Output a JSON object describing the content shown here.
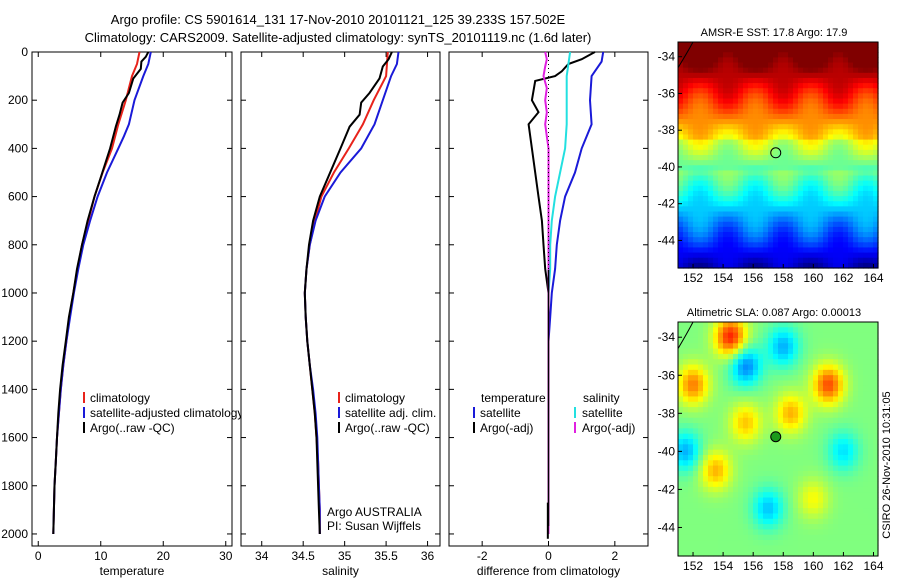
{
  "header": {
    "line1": "Argo profile: CS 5901614_131 17-Nov-2010 20101121_125 39.233S 157.502E",
    "line2": "Climatology: CARS2009. Satellite-adjusted climatology: synTS_20101119.nc (1.6d later)"
  },
  "colors": {
    "climatology": "#e8231b",
    "satellite": "#1a1ad8",
    "argo": "#000000",
    "sat_salinity": "#22e0e0",
    "argo_salinity_adj": "#e020e0"
  },
  "y_axis": {
    "ticks": [
      0,
      200,
      400,
      600,
      800,
      1000,
      1200,
      1400,
      1600,
      1800,
      2000
    ],
    "range": [
      0,
      2050
    ]
  },
  "chart_data": [
    {
      "type": "line",
      "id": "temperature",
      "xlabel": "temperature",
      "xlim": [
        -1,
        31
      ],
      "xticks": [
        0,
        10,
        20,
        30
      ],
      "ylim": [
        2050,
        0
      ],
      "legend": [
        "climatology",
        "satellite-adjusted climatology",
        "Argo(..raw -QC)"
      ],
      "series": [
        {
          "name": "climatology",
          "color_key": "climatology",
          "points": [
            [
              16.2,
              0
            ],
            [
              15.8,
              50
            ],
            [
              15.0,
              100
            ],
            [
              14.0,
              200
            ],
            [
              12.8,
              300
            ],
            [
              11.8,
              400
            ],
            [
              10.3,
              500
            ],
            [
              9.0,
              600
            ],
            [
              8.0,
              700
            ],
            [
              7.0,
              800
            ],
            [
              6.3,
              900
            ],
            [
              5.6,
              1000
            ],
            [
              5.0,
              1100
            ],
            [
              4.5,
              1200
            ],
            [
              4.0,
              1300
            ],
            [
              3.6,
              1400
            ],
            [
              3.3,
              1500
            ],
            [
              3.0,
              1600
            ],
            [
              2.8,
              1700
            ],
            [
              2.6,
              1800
            ],
            [
              2.5,
              1900
            ],
            [
              2.4,
              2000
            ]
          ]
        },
        {
          "name": "satellite-adjusted climatology",
          "color_key": "satellite",
          "points": [
            [
              18.0,
              0
            ],
            [
              17.6,
              50
            ],
            [
              16.8,
              100
            ],
            [
              15.4,
              200
            ],
            [
              14.5,
              300
            ],
            [
              13.7,
              350
            ],
            [
              12.8,
              400
            ],
            [
              11.0,
              500
            ],
            [
              9.5,
              600
            ],
            [
              8.3,
              700
            ],
            [
              7.2,
              800
            ],
            [
              6.4,
              900
            ],
            [
              5.7,
              1000
            ],
            [
              5.1,
              1100
            ],
            [
              4.5,
              1200
            ],
            [
              4.0,
              1300
            ],
            [
              3.6,
              1400
            ],
            [
              3.3,
              1500
            ],
            [
              3.0,
              1600
            ],
            [
              2.8,
              1700
            ],
            [
              2.6,
              1800
            ],
            [
              2.5,
              1900
            ],
            [
              2.4,
              2000
            ]
          ]
        },
        {
          "name": "Argo(..raw -QC)",
          "color_key": "argo",
          "points": [
            [
              17.6,
              0
            ],
            [
              17.2,
              20
            ],
            [
              16.5,
              40
            ],
            [
              16.4,
              70
            ],
            [
              15.2,
              110
            ],
            [
              14.5,
              170
            ],
            [
              13.5,
              210
            ],
            [
              13.0,
              260
            ],
            [
              12.4,
              310
            ],
            [
              11.5,
              400
            ],
            [
              10.0,
              520
            ],
            [
              9.0,
              600
            ],
            [
              7.9,
              700
            ],
            [
              7.0,
              800
            ],
            [
              6.2,
              900
            ],
            [
              5.6,
              1000
            ],
            [
              4.9,
              1100
            ],
            [
              4.4,
              1200
            ],
            [
              3.9,
              1300
            ],
            [
              3.5,
              1400
            ],
            [
              3.2,
              1500
            ],
            [
              3.0,
              1600
            ],
            [
              2.8,
              1700
            ],
            [
              2.6,
              1800
            ],
            [
              2.5,
              1900
            ],
            [
              2.4,
              2000
            ]
          ]
        }
      ]
    },
    {
      "type": "line",
      "id": "salinity",
      "xlabel": "salinity",
      "xlim": [
        33.75,
        36.15
      ],
      "xticks": [
        34,
        34.5,
        35,
        35.5,
        36
      ],
      "ylim": [
        2050,
        0
      ],
      "legend": [
        "climatology",
        "satellite adj. clim.",
        "Argo(..raw -QC)"
      ],
      "series": [
        {
          "name": "climatology",
          "color_key": "climatology",
          "points": [
            [
              35.52,
              0
            ],
            [
              35.5,
              100
            ],
            [
              35.35,
              200
            ],
            [
              35.22,
              300
            ],
            [
              35.05,
              400
            ],
            [
              34.87,
              500
            ],
            [
              34.72,
              600
            ],
            [
              34.64,
              700
            ],
            [
              34.58,
              800
            ],
            [
              34.54,
              900
            ],
            [
              34.52,
              1000
            ],
            [
              34.53,
              1100
            ],
            [
              34.55,
              1200
            ],
            [
              34.58,
              1300
            ],
            [
              34.61,
              1400
            ],
            [
              34.64,
              1500
            ],
            [
              34.66,
              1600
            ],
            [
              34.68,
              1700
            ],
            [
              34.69,
              1800
            ],
            [
              34.7,
              1900
            ],
            [
              34.7,
              2000
            ]
          ]
        },
        {
          "name": "satellite adj. clim.",
          "color_key": "satellite",
          "points": [
            [
              35.65,
              0
            ],
            [
              35.63,
              50
            ],
            [
              35.56,
              100
            ],
            [
              35.46,
              200
            ],
            [
              35.36,
              300
            ],
            [
              35.2,
              400
            ],
            [
              34.95,
              500
            ],
            [
              34.76,
              600
            ],
            [
              34.65,
              700
            ],
            [
              34.58,
              800
            ],
            [
              34.54,
              900
            ],
            [
              34.52,
              1000
            ],
            [
              34.53,
              1100
            ],
            [
              34.55,
              1200
            ],
            [
              34.58,
              1300
            ],
            [
              34.62,
              1400
            ],
            [
              34.65,
              1500
            ],
            [
              34.67,
              1600
            ],
            [
              34.68,
              1700
            ],
            [
              34.69,
              1800
            ],
            [
              34.7,
              1900
            ],
            [
              34.7,
              2000
            ]
          ]
        },
        {
          "name": "Argo(..raw -QC)",
          "color_key": "argo",
          "points": [
            [
              35.57,
              0
            ],
            [
              35.53,
              30
            ],
            [
              35.46,
              60
            ],
            [
              35.42,
              110
            ],
            [
              35.3,
              170
            ],
            [
              35.2,
              210
            ],
            [
              35.18,
              260
            ],
            [
              35.06,
              310
            ],
            [
              34.95,
              400
            ],
            [
              34.8,
              520
            ],
            [
              34.7,
              600
            ],
            [
              34.62,
              700
            ],
            [
              34.57,
              800
            ],
            [
              34.54,
              900
            ],
            [
              34.52,
              1000
            ],
            [
              34.53,
              1100
            ],
            [
              34.55,
              1200
            ],
            [
              34.58,
              1300
            ],
            [
              34.61,
              1400
            ],
            [
              34.64,
              1500
            ],
            [
              34.66,
              1600
            ],
            [
              34.67,
              1700
            ],
            [
              34.68,
              1800
            ],
            [
              34.69,
              1900
            ],
            [
              34.7,
              2000
            ]
          ]
        }
      ],
      "annotation": [
        "Argo AUSTRALIA",
        "PI: Susan Wijffels"
      ]
    },
    {
      "type": "line",
      "id": "difference",
      "xlabel": "difference from climatology",
      "xlim": [
        -3,
        3
      ],
      "xticks": [
        -2,
        0,
        2
      ],
      "ylim": [
        2050,
        0
      ],
      "legend_left": [
        "temperature",
        "satellite",
        "Argo(-adj)"
      ],
      "legend_right": [
        "salinity",
        "satellite",
        "Argo(-adj)"
      ],
      "series": [
        {
          "name": "temperature satellite",
          "color_key": "satellite",
          "points": [
            [
              1.65,
              0
            ],
            [
              1.6,
              40
            ],
            [
              1.3,
              100
            ],
            [
              1.25,
              200
            ],
            [
              1.3,
              300
            ],
            [
              1.0,
              400
            ],
            [
              0.8,
              500
            ],
            [
              0.5,
              600
            ],
            [
              0.35,
              700
            ],
            [
              0.25,
              800
            ],
            [
              0.2,
              900
            ],
            [
              0.1,
              1000
            ],
            [
              0.05,
              1100
            ],
            [
              0.0,
              1200
            ],
            [
              0.0,
              2000
            ]
          ]
        },
        {
          "name": "temperature Argo(-adj)",
          "color_key": "argo",
          "points": [
            [
              1.4,
              0
            ],
            [
              1.0,
              30
            ],
            [
              0.6,
              50
            ],
            [
              0.4,
              80
            ],
            [
              0.2,
              100
            ],
            [
              -0.4,
              120
            ],
            [
              -0.5,
              200
            ],
            [
              -0.3,
              250
            ],
            [
              -0.6,
              300
            ],
            [
              -0.5,
              400
            ],
            [
              -0.3,
              600
            ],
            [
              -0.2,
              700
            ],
            [
              -0.15,
              800
            ],
            [
              -0.1,
              900
            ],
            [
              0.0,
              1000
            ],
            [
              0.0,
              2000
            ]
          ]
        },
        {
          "name": "salinity satellite",
          "color_key": "sat_salinity",
          "points": [
            [
              0.65,
              0
            ],
            [
              0.6,
              50
            ],
            [
              0.55,
              100
            ],
            [
              0.55,
              200
            ],
            [
              0.55,
              300
            ],
            [
              0.5,
              400
            ],
            [
              0.35,
              500
            ],
            [
              0.2,
              600
            ],
            [
              0.1,
              700
            ],
            [
              0.05,
              800
            ],
            [
              0.05,
              900
            ],
            [
              0.0,
              1000
            ],
            [
              0.0,
              2000
            ]
          ]
        },
        {
          "name": "salinity Argo(-adj)",
          "color_key": "argo_salinity_adj",
          "points": [
            [
              -0.1,
              0
            ],
            [
              -0.05,
              30
            ],
            [
              -0.1,
              60
            ],
            [
              -0.15,
              100
            ],
            [
              -0.05,
              150
            ],
            [
              -0.1,
              200
            ],
            [
              -0.05,
              250
            ],
            [
              -0.1,
              300
            ],
            [
              -0.05,
              350
            ],
            [
              0.0,
              400
            ],
            [
              0.0,
              2000
            ]
          ]
        }
      ]
    },
    {
      "type": "heatmap",
      "id": "sst_map",
      "title": "AMSR-E SST: 17.8 Argo: 17.9",
      "xlim": [
        151,
        164.3
      ],
      "ylim": [
        -45.5,
        -33.2
      ],
      "xticks": [
        152,
        154,
        156,
        158,
        160,
        162,
        164
      ],
      "yticks": [
        -34,
        -36,
        -38,
        -40,
        -42,
        -44
      ],
      "marker": [
        157.5,
        -39.23
      ]
    },
    {
      "type": "heatmap",
      "id": "sla_map",
      "title": "Altimetric SLA: 0.087 Argo: 0.00013",
      "xlim": [
        151,
        164.3
      ],
      "ylim": [
        -45.5,
        -33.2
      ],
      "xticks": [
        152,
        154,
        156,
        158,
        160,
        162,
        164
      ],
      "yticks": [
        -34,
        -36,
        -38,
        -40,
        -42,
        -44
      ],
      "marker": [
        157.5,
        -39.23
      ]
    }
  ],
  "footer": {
    "credit": "CSIRO 26-Nov-2010 10:31:05"
  }
}
